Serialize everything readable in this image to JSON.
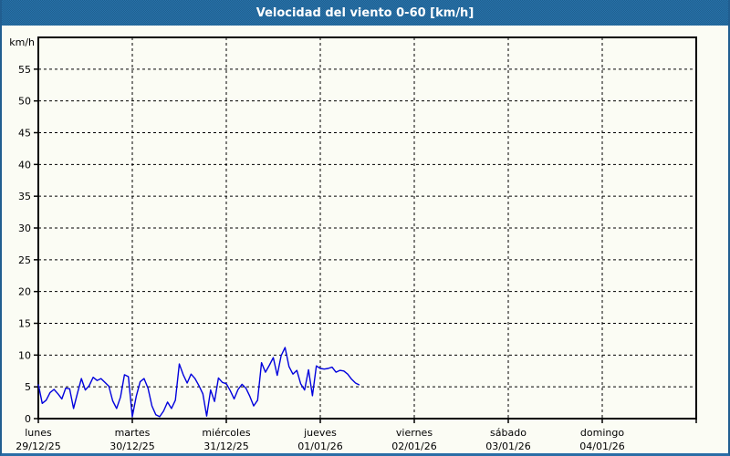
{
  "window": {
    "title": "Velocidad del viento 0-60 [km/h]"
  },
  "colors": {
    "header_bg": "#2569a1",
    "header_bg_dark": "#1f608f",
    "frame_border": "#215e90",
    "body_bg": "#fbfcf4",
    "line": "#0000dd",
    "axis": "#000000",
    "grid": "#000000",
    "title_text": "#ffffff",
    "label_text": "#000000"
  },
  "chart_data": {
    "type": "line",
    "title": "Velocidad del viento 0-60 [km/h]",
    "unit_label": "km/h",
    "ylabel": "km/h",
    "xlabel": "",
    "ylim": [
      0,
      60
    ],
    "ytick_step": 5,
    "yticks": [
      0,
      5,
      10,
      15,
      20,
      25,
      30,
      35,
      40,
      45,
      50,
      55
    ],
    "grid": "dashed",
    "legend_position": "none",
    "x_days": [
      {
        "name": "lunes",
        "date": "29/12/25"
      },
      {
        "name": "martes",
        "date": "30/12/25"
      },
      {
        "name": "miércoles",
        "date": "31/12/25"
      },
      {
        "name": "jueves",
        "date": "01/01/26"
      },
      {
        "name": "viernes",
        "date": "02/01/26"
      },
      {
        "name": "sábado",
        "date": "03/01/26"
      },
      {
        "name": "domingo",
        "date": "04/01/26"
      }
    ],
    "series": [
      {
        "name": "velocidad_viento_kmh",
        "points_per_day": 24,
        "values": [
          5.4,
          2.4,
          2.9,
          4.1,
          4.6,
          3.9,
          3.1,
          4.8,
          4.7,
          1.6,
          4.0,
          6.3,
          4.5,
          5.2,
          6.5,
          6.0,
          6.3,
          5.7,
          5.1,
          2.8,
          1.6,
          3.4,
          6.9,
          6.6,
          0.3,
          3.5,
          5.8,
          6.3,
          4.8,
          2.0,
          0.6,
          0.3,
          1.2,
          2.6,
          1.6,
          2.9,
          8.6,
          6.9,
          5.6,
          7.0,
          6.3,
          5.2,
          3.9,
          0.4,
          4.5,
          2.7,
          6.4,
          5.7,
          5.5,
          4.4,
          3.1,
          4.6,
          5.4,
          4.8,
          3.5,
          2.0,
          2.9,
          8.8,
          7.3,
          8.4,
          9.6,
          6.8,
          9.9,
          11.2,
          8.2,
          7.0,
          7.6,
          5.5,
          4.5,
          7.7,
          3.6,
          8.3,
          7.9,
          7.8,
          7.9,
          8.1,
          7.3,
          7.6,
          7.5,
          7.0,
          6.2,
          5.6,
          5.3
        ]
      }
    ]
  }
}
